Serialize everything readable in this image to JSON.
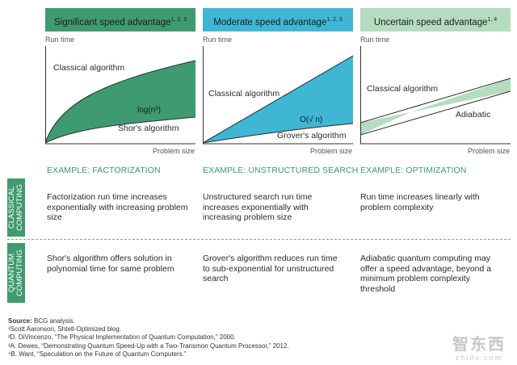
{
  "columns": [
    {
      "header": "Significant speed advantage",
      "header_refs": "1, 2, 3",
      "header_color": "#3f9a72",
      "y_axis": "Run time",
      "x_axis": "Problem size",
      "curve_upper": "Classical algorithm",
      "curve_lower": "Shor's algorithm",
      "region_label": "log(n³)",
      "example": "EXAMPLE: FACTORIZATION",
      "classical_text": "Factorization run time increases exponentially with increasing problem size",
      "quantum_text": "Shor's algorithm offers solution in polynomial time for same problem"
    },
    {
      "header": "Moderate speed advantage",
      "header_refs": "1, 2, 3",
      "header_color": "#3fb7d4",
      "y_axis": "Run time",
      "x_axis": "Problem size",
      "curve_upper": "Classical algorithm",
      "curve_lower": "Grover's algorithm",
      "region_label": "O(√ n)",
      "example": "EXAMPLE: UNSTRUCTURED SEARCH",
      "classical_text": "Unstructured search run time increases exponentially with increasing problem size",
      "quantum_text": "Grover's algorithm reduces run time to sub-exponential for unstructured search"
    },
    {
      "header": "Uncertain speed advantage",
      "header_refs": "1, 4",
      "header_color": "#b5dcbf",
      "y_axis": "Run time",
      "x_axis": "Problem size",
      "curve_upper": "Classical algorithm",
      "curve_lower": "Adiabatic",
      "example": "EXAMPLE: OPTIMIZATION",
      "classical_text": "Run time increases linearly with problem complexity",
      "quantum_text": "Adiabatic quantum computing may offer a speed advantage, beyond a minimum problem complexity threshold"
    }
  ],
  "rows": {
    "classical": "CLASSICAL COMPUTING",
    "quantum": "QUANTUM COMPUTING"
  },
  "notes": {
    "source_label": "Source:",
    "source_text": "BCG analysis.",
    "fn1": "¹Scott Aaronson, Shtetl-Optimized blog.",
    "fn2": "²D. DiVincenzo, “The Physical Implementation of Quantum Computation,” 2000.",
    "fn3": "³A. Dewes, “Demonstrating Quantum Speed-Up with a Two-Transmon Quantum Processor,” 2012.",
    "fn4": "⁴B. Want, “Speculation on the Future of Quantum Computers.”"
  },
  "watermark": {
    "text": "智东西",
    "url": "zhidx.com"
  }
}
